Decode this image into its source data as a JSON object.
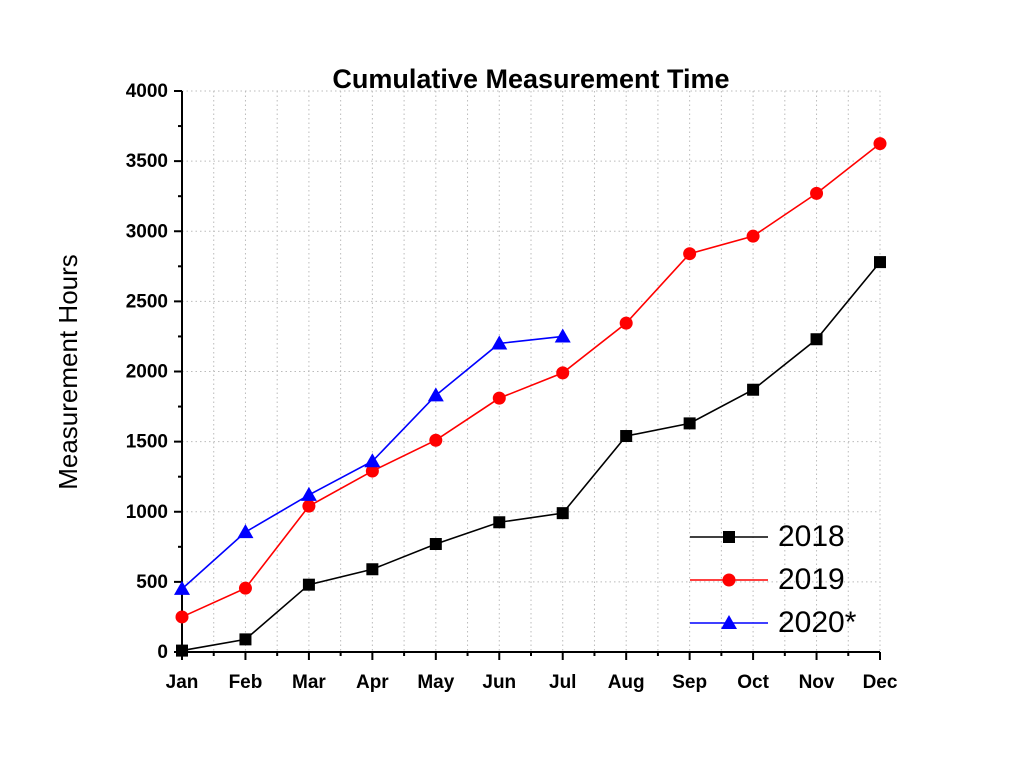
{
  "chart_data": {
    "type": "line",
    "title": "Cumulative Measurement Time",
    "y_label": "Measurement Hours",
    "categories": [
      "Jan",
      "Feb",
      "Mar",
      "Apr",
      "May",
      "Jun",
      "Jul",
      "Aug",
      "Sep",
      "Oct",
      "Nov",
      "Dec"
    ],
    "series": [
      {
        "name": "2018",
        "color": "#000000",
        "marker": "square",
        "values": [
          10,
          90,
          480,
          590,
          770,
          925,
          990,
          1540,
          1630,
          1870,
          2230,
          2780
        ]
      },
      {
        "name": "2019",
        "color": "#ff0000",
        "marker": "circle",
        "values": [
          250,
          455,
          1040,
          1290,
          1510,
          1810,
          1990,
          2345,
          2840,
          2965,
          3270,
          3625
        ]
      },
      {
        "name": "2020*",
        "color": "#0000ff",
        "marker": "triangle",
        "values": [
          450,
          855,
          1120,
          1360,
          1830,
          2200,
          2250,
          null,
          null,
          null,
          null,
          null
        ]
      }
    ],
    "ylim": [
      0,
      4000
    ],
    "yticks": [
      0,
      500,
      1000,
      1500,
      2000,
      2500,
      3000,
      3500,
      4000
    ],
    "grid": true,
    "legend_position": "lower right"
  }
}
